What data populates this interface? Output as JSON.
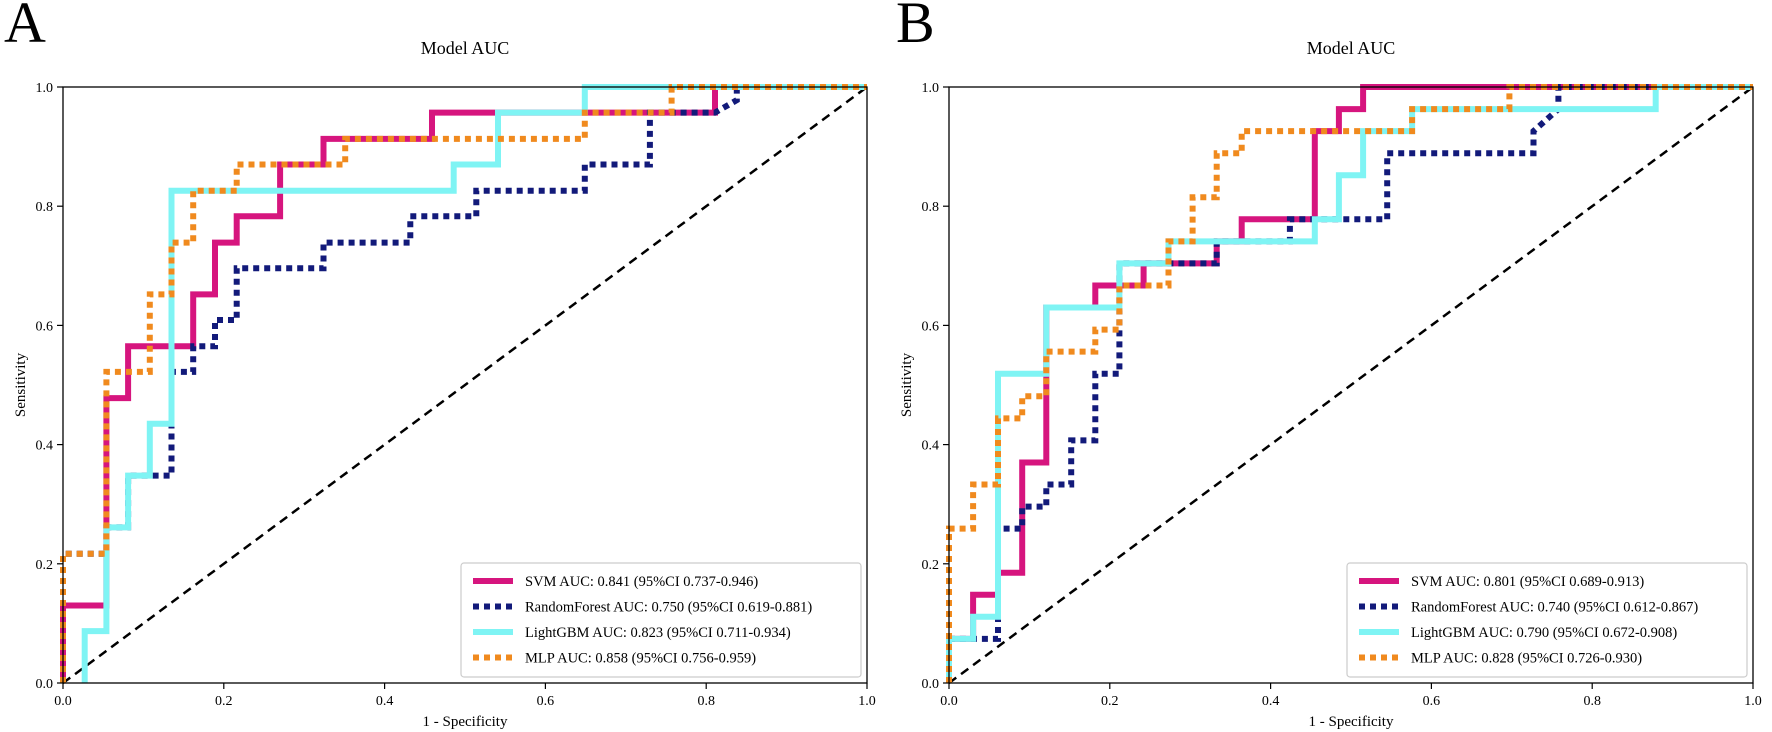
{
  "colors": {
    "svm": "#d6157e",
    "randomforest": "#121a7a",
    "lightgbm": "#7ff4f4",
    "mlp": "#f08a1e",
    "diagonal": "#000000"
  },
  "chart_data": [
    {
      "panel_label": "A",
      "type": "line",
      "title": "Model AUC",
      "xlabel": "1 - Specificity",
      "ylabel": "Sensitivity",
      "xlim": [
        0.0,
        1.0
      ],
      "ylim": [
        0.0,
        1.0
      ],
      "xticks": [
        "0.0",
        "0.2",
        "0.4",
        "0.6",
        "0.8",
        "1.0"
      ],
      "yticks": [
        "0.0",
        "0.2",
        "0.4",
        "0.6",
        "0.8",
        "1.0"
      ],
      "legend_position": "bottom-right",
      "diagonal": [
        [
          0,
          0
        ],
        [
          1,
          1
        ]
      ],
      "series": [
        {
          "key": "svm",
          "name": "SVM AUC: 0.841 (95%CI 0.737-0.946)",
          "style": "solid",
          "points": [
            [
              0,
              0
            ],
            [
              0,
              0.13
            ],
            [
              0.054,
              0.13
            ],
            [
              0.054,
              0.478
            ],
            [
              0.081,
              0.478
            ],
            [
              0.081,
              0.565
            ],
            [
              0.162,
              0.565
            ],
            [
              0.162,
              0.652
            ],
            [
              0.189,
              0.652
            ],
            [
              0.189,
              0.739
            ],
            [
              0.216,
              0.739
            ],
            [
              0.216,
              0.783
            ],
            [
              0.27,
              0.783
            ],
            [
              0.27,
              0.87
            ],
            [
              0.324,
              0.87
            ],
            [
              0.324,
              0.913
            ],
            [
              0.459,
              0.913
            ],
            [
              0.459,
              0.957
            ],
            [
              0.811,
              0.957
            ],
            [
              0.811,
              1.0
            ],
            [
              1,
              1
            ]
          ]
        },
        {
          "key": "randomforest",
          "name": "RandomForest AUC: 0.750 (95%CI 0.619-0.881)",
          "style": "dotted",
          "points": [
            [
              0,
              0
            ],
            [
              0,
              0.217
            ],
            [
              0.054,
              0.217
            ],
            [
              0.054,
              0.261
            ],
            [
              0.081,
              0.261
            ],
            [
              0.081,
              0.348
            ],
            [
              0.135,
              0.348
            ],
            [
              0.135,
              0.391
            ],
            [
              0.135,
              0.522
            ],
            [
              0.162,
              0.522
            ],
            [
              0.162,
              0.565
            ],
            [
              0.189,
              0.565
            ],
            [
              0.189,
              0.609
            ],
            [
              0.216,
              0.609
            ],
            [
              0.216,
              0.696
            ],
            [
              0.324,
              0.696
            ],
            [
              0.324,
              0.739
            ],
            [
              0.432,
              0.739
            ],
            [
              0.432,
              0.783
            ],
            [
              0.514,
              0.783
            ],
            [
              0.514,
              0.826
            ],
            [
              0.649,
              0.826
            ],
            [
              0.649,
              0.87
            ],
            [
              0.73,
              0.87
            ],
            [
              0.73,
              0.957
            ],
            [
              0.811,
              0.957
            ],
            [
              0.838,
              0.978
            ],
            [
              0.838,
              1.0
            ],
            [
              1,
              1
            ]
          ]
        },
        {
          "key": "lightgbm",
          "name": "LightGBM AUC: 0.823 (95%CI 0.711-0.934)",
          "style": "solid",
          "points": [
            [
              0.027,
              0
            ],
            [
              0.027,
              0.087
            ],
            [
              0.054,
              0.087
            ],
            [
              0.054,
              0.261
            ],
            [
              0.081,
              0.261
            ],
            [
              0.081,
              0.348
            ],
            [
              0.108,
              0.348
            ],
            [
              0.108,
              0.435
            ],
            [
              0.135,
              0.435
            ],
            [
              0.135,
              0.826
            ],
            [
              0.486,
              0.826
            ],
            [
              0.486,
              0.87
            ],
            [
              0.541,
              0.87
            ],
            [
              0.541,
              0.957
            ],
            [
              0.649,
              0.957
            ],
            [
              0.649,
              1.0
            ],
            [
              1,
              1
            ]
          ]
        },
        {
          "key": "mlp",
          "name": "MLP AUC: 0.858 (95%CI 0.756-0.959)",
          "style": "dotted",
          "points": [
            [
              0,
              0
            ],
            [
              0,
              0.217
            ],
            [
              0.054,
              0.217
            ],
            [
              0.054,
              0.522
            ],
            [
              0.108,
              0.522
            ],
            [
              0.108,
              0.652
            ],
            [
              0.135,
              0.652
            ],
            [
              0.135,
              0.739
            ],
            [
              0.162,
              0.739
            ],
            [
              0.162,
              0.826
            ],
            [
              0.216,
              0.826
            ],
            [
              0.216,
              0.87
            ],
            [
              0.351,
              0.87
            ],
            [
              0.351,
              0.913
            ],
            [
              0.649,
              0.913
            ],
            [
              0.649,
              0.957
            ],
            [
              0.757,
              0.957
            ],
            [
              0.757,
              1.0
            ],
            [
              1,
              1
            ]
          ]
        }
      ]
    },
    {
      "panel_label": "B",
      "type": "line",
      "title": "Model AUC",
      "xlabel": "1 - Specificity",
      "ylabel": "Sensitivity",
      "xlim": [
        0.0,
        1.0
      ],
      "ylim": [
        0.0,
        1.0
      ],
      "xticks": [
        "0.0",
        "0.2",
        "0.4",
        "0.6",
        "0.8",
        "1.0"
      ],
      "yticks": [
        "0.0",
        "0.2",
        "0.4",
        "0.6",
        "0.8",
        "1.0"
      ],
      "legend_position": "bottom-right",
      "diagonal": [
        [
          0,
          0
        ],
        [
          1,
          1
        ]
      ],
      "series": [
        {
          "key": "svm",
          "name": "SVM AUC: 0.801 (95%CI 0.689-0.913)",
          "style": "solid",
          "points": [
            [
              0,
              0
            ],
            [
              0,
              0.074
            ],
            [
              0.03,
              0.074
            ],
            [
              0.03,
              0.148
            ],
            [
              0.061,
              0.148
            ],
            [
              0.061,
              0.185
            ],
            [
              0.091,
              0.185
            ],
            [
              0.091,
              0.37
            ],
            [
              0.121,
              0.37
            ],
            [
              0.121,
              0.63
            ],
            [
              0.182,
              0.63
            ],
            [
              0.182,
              0.667
            ],
            [
              0.242,
              0.667
            ],
            [
              0.242,
              0.704
            ],
            [
              0.333,
              0.704
            ],
            [
              0.333,
              0.741
            ],
            [
              0.364,
              0.741
            ],
            [
              0.364,
              0.778
            ],
            [
              0.455,
              0.778
            ],
            [
              0.455,
              0.926
            ],
            [
              0.485,
              0.926
            ],
            [
              0.485,
              0.963
            ],
            [
              0.515,
              0.963
            ],
            [
              0.515,
              1.0
            ],
            [
              1,
              1
            ]
          ]
        },
        {
          "key": "randomforest",
          "name": "RandomForest AUC: 0.740 (95%CI 0.612-0.867)",
          "style": "dotted",
          "points": [
            [
              0,
              0
            ],
            [
              0,
              0.074
            ],
            [
              0.061,
              0.074
            ],
            [
              0.061,
              0.259
            ],
            [
              0.091,
              0.259
            ],
            [
              0.091,
              0.296
            ],
            [
              0.121,
              0.296
            ],
            [
              0.121,
              0.333
            ],
            [
              0.152,
              0.333
            ],
            [
              0.152,
              0.407
            ],
            [
              0.182,
              0.407
            ],
            [
              0.182,
              0.519
            ],
            [
              0.212,
              0.519
            ],
            [
              0.212,
              0.704
            ],
            [
              0.333,
              0.704
            ],
            [
              0.333,
              0.741
            ],
            [
              0.424,
              0.741
            ],
            [
              0.424,
              0.778
            ],
            [
              0.545,
              0.778
            ],
            [
              0.545,
              0.889
            ],
            [
              0.727,
              0.889
            ],
            [
              0.727,
              0.926
            ],
            [
              0.758,
              0.963
            ],
            [
              0.758,
              1.0
            ],
            [
              1,
              1
            ]
          ]
        },
        {
          "key": "lightgbm",
          "name": "LightGBM AUC: 0.790 (95%CI 0.672-0.908)",
          "style": "solid",
          "points": [
            [
              0,
              0
            ],
            [
              0,
              0.074
            ],
            [
              0.03,
              0.074
            ],
            [
              0.03,
              0.111
            ],
            [
              0.061,
              0.111
            ],
            [
              0.061,
              0.519
            ],
            [
              0.121,
              0.519
            ],
            [
              0.121,
              0.63
            ],
            [
              0.212,
              0.63
            ],
            [
              0.212,
              0.704
            ],
            [
              0.273,
              0.704
            ],
            [
              0.273,
              0.741
            ],
            [
              0.455,
              0.741
            ],
            [
              0.455,
              0.778
            ],
            [
              0.485,
              0.778
            ],
            [
              0.485,
              0.852
            ],
            [
              0.515,
              0.852
            ],
            [
              0.515,
              0.926
            ],
            [
              0.576,
              0.926
            ],
            [
              0.576,
              0.963
            ],
            [
              0.879,
              0.963
            ],
            [
              0.879,
              1.0
            ],
            [
              1,
              1
            ]
          ]
        },
        {
          "key": "mlp",
          "name": "MLP AUC: 0.828 (95%CI 0.726-0.930)",
          "style": "dotted",
          "points": [
            [
              0,
              0
            ],
            [
              0,
              0.259
            ],
            [
              0.03,
              0.259
            ],
            [
              0.03,
              0.333
            ],
            [
              0.061,
              0.333
            ],
            [
              0.061,
              0.444
            ],
            [
              0.091,
              0.444
            ],
            [
              0.091,
              0.481
            ],
            [
              0.121,
              0.481
            ],
            [
              0.121,
              0.556
            ],
            [
              0.182,
              0.556
            ],
            [
              0.182,
              0.593
            ],
            [
              0.212,
              0.593
            ],
            [
              0.212,
              0.667
            ],
            [
              0.273,
              0.667
            ],
            [
              0.273,
              0.741
            ],
            [
              0.303,
              0.741
            ],
            [
              0.303,
              0.815
            ],
            [
              0.333,
              0.815
            ],
            [
              0.333,
              0.889
            ],
            [
              0.364,
              0.889
            ],
            [
              0.364,
              0.926
            ],
            [
              0.576,
              0.926
            ],
            [
              0.576,
              0.963
            ],
            [
              0.697,
              0.963
            ],
            [
              0.697,
              1.0
            ],
            [
              1,
              1
            ]
          ]
        }
      ]
    }
  ]
}
